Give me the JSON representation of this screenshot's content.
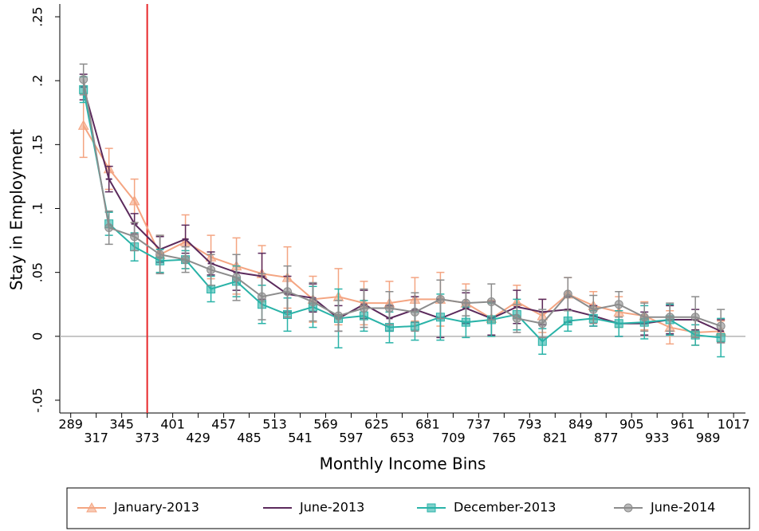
{
  "chart_data": {
    "type": "line-errorbar",
    "y_label": "Stay in Employment",
    "x_label": "Monthly Income Bins",
    "x": [
      303,
      331,
      359,
      387,
      415,
      443,
      471,
      499,
      527,
      555,
      583,
      611,
      639,
      667,
      695,
      723,
      751,
      779,
      807,
      835,
      863,
      891,
      919,
      947,
      975,
      1003
    ],
    "series": [
      {
        "name": "January-2013",
        "color": "#f4a582",
        "marker": "triangle",
        "values": [
          0.165,
          0.131,
          0.106,
          0.064,
          0.074,
          0.062,
          0.055,
          0.049,
          0.046,
          0.029,
          0.031,
          0.026,
          0.026,
          0.029,
          0.029,
          0.026,
          0.014,
          0.027,
          0.016,
          0.033,
          0.024,
          0.019,
          0.016,
          0.007,
          0.003,
          0.004
        ],
        "errors": [
          0.025,
          0.016,
          0.017,
          0.015,
          0.021,
          0.017,
          0.022,
          0.022,
          0.024,
          0.018,
          0.022,
          0.017,
          0.017,
          0.017,
          0.021,
          0.015,
          0.014,
          0.013,
          0.013,
          0.013,
          0.011,
          0.012,
          0.011,
          0.013,
          0.01,
          0.008
        ]
      },
      {
        "name": "June-2013",
        "color": "#5b2a5c",
        "marker": "dash",
        "values": [
          0.195,
          0.123,
          0.088,
          0.068,
          0.076,
          0.057,
          0.05,
          0.047,
          0.033,
          0.03,
          0.014,
          0.025,
          0.014,
          0.021,
          0.014,
          0.022,
          0.014,
          0.023,
          0.019,
          0.021,
          0.016,
          0.01,
          0.01,
          0.013,
          0.013,
          0.004
        ],
        "errors": [
          0.01,
          0.01,
          0.008,
          0.01,
          0.011,
          0.009,
          0.014,
          0.018,
          0.014,
          0.011,
          0.01,
          0.011,
          0.01,
          0.01,
          0.015,
          0.012,
          0.013,
          0.013,
          0.01,
          0.01,
          0.008,
          0.01,
          0.009,
          0.011,
          0.008,
          0.009
        ]
      },
      {
        "name": "December-2013",
        "color": "#2ab3a8",
        "marker": "square",
        "values": [
          0.193,
          0.088,
          0.07,
          0.059,
          0.06,
          0.037,
          0.043,
          0.025,
          0.017,
          0.023,
          0.014,
          0.016,
          0.007,
          0.008,
          0.015,
          0.011,
          0.013,
          0.017,
          -0.004,
          0.012,
          0.014,
          0.01,
          0.011,
          0.013,
          0.001,
          -0.001
        ],
        "errors": [
          0.01,
          0.009,
          0.011,
          0.009,
          0.007,
          0.01,
          0.012,
          0.015,
          0.013,
          0.016,
          0.023,
          0.012,
          0.012,
          0.011,
          0.018,
          0.012,
          0.013,
          0.012,
          0.01,
          0.008,
          0.006,
          0.01,
          0.013,
          0.012,
          0.008,
          0.015
        ]
      },
      {
        "name": "June-2014",
        "color": "#8c8c8c",
        "marker": "circle",
        "values": [
          0.201,
          0.085,
          0.078,
          0.064,
          0.06,
          0.052,
          0.046,
          0.031,
          0.035,
          0.027,
          0.016,
          0.022,
          0.022,
          0.019,
          0.029,
          0.026,
          0.027,
          0.014,
          0.01,
          0.033,
          0.021,
          0.025,
          0.015,
          0.015,
          0.015,
          0.008
        ],
        "errors": [
          0.012,
          0.013,
          0.011,
          0.015,
          0.01,
          0.012,
          0.018,
          0.018,
          0.02,
          0.015,
          0.012,
          0.015,
          0.013,
          0.015,
          0.015,
          0.01,
          0.014,
          0.011,
          0.011,
          0.013,
          0.011,
          0.01,
          0.011,
          0.011,
          0.016,
          0.013
        ]
      }
    ],
    "xlim": [
      277,
      1030
    ],
    "xticks": [
      289,
      317,
      345,
      373,
      401,
      429,
      457,
      485,
      513,
      541,
      569,
      597,
      625,
      653,
      681,
      709,
      737,
      765,
      793,
      821,
      849,
      877,
      905,
      933,
      961,
      989,
      1017
    ],
    "ylim": [
      -0.06,
      0.26
    ],
    "yticks": [
      {
        "value": -0.05,
        "label": "-.05"
      },
      0,
      {
        "value": 0.05,
        "label": ".05"
      },
      {
        "value": 0.1,
        "label": ".1"
      },
      {
        "value": 0.15,
        "label": ".15"
      },
      {
        "value": 0.2,
        "label": ".2"
      },
      {
        "value": 0.25,
        "label": ".25"
      }
    ],
    "vline": {
      "value": 373,
      "color": "#e8272a"
    },
    "hline": {
      "value": 0,
      "color": "#b4b4b4"
    },
    "legend": "bottom"
  }
}
